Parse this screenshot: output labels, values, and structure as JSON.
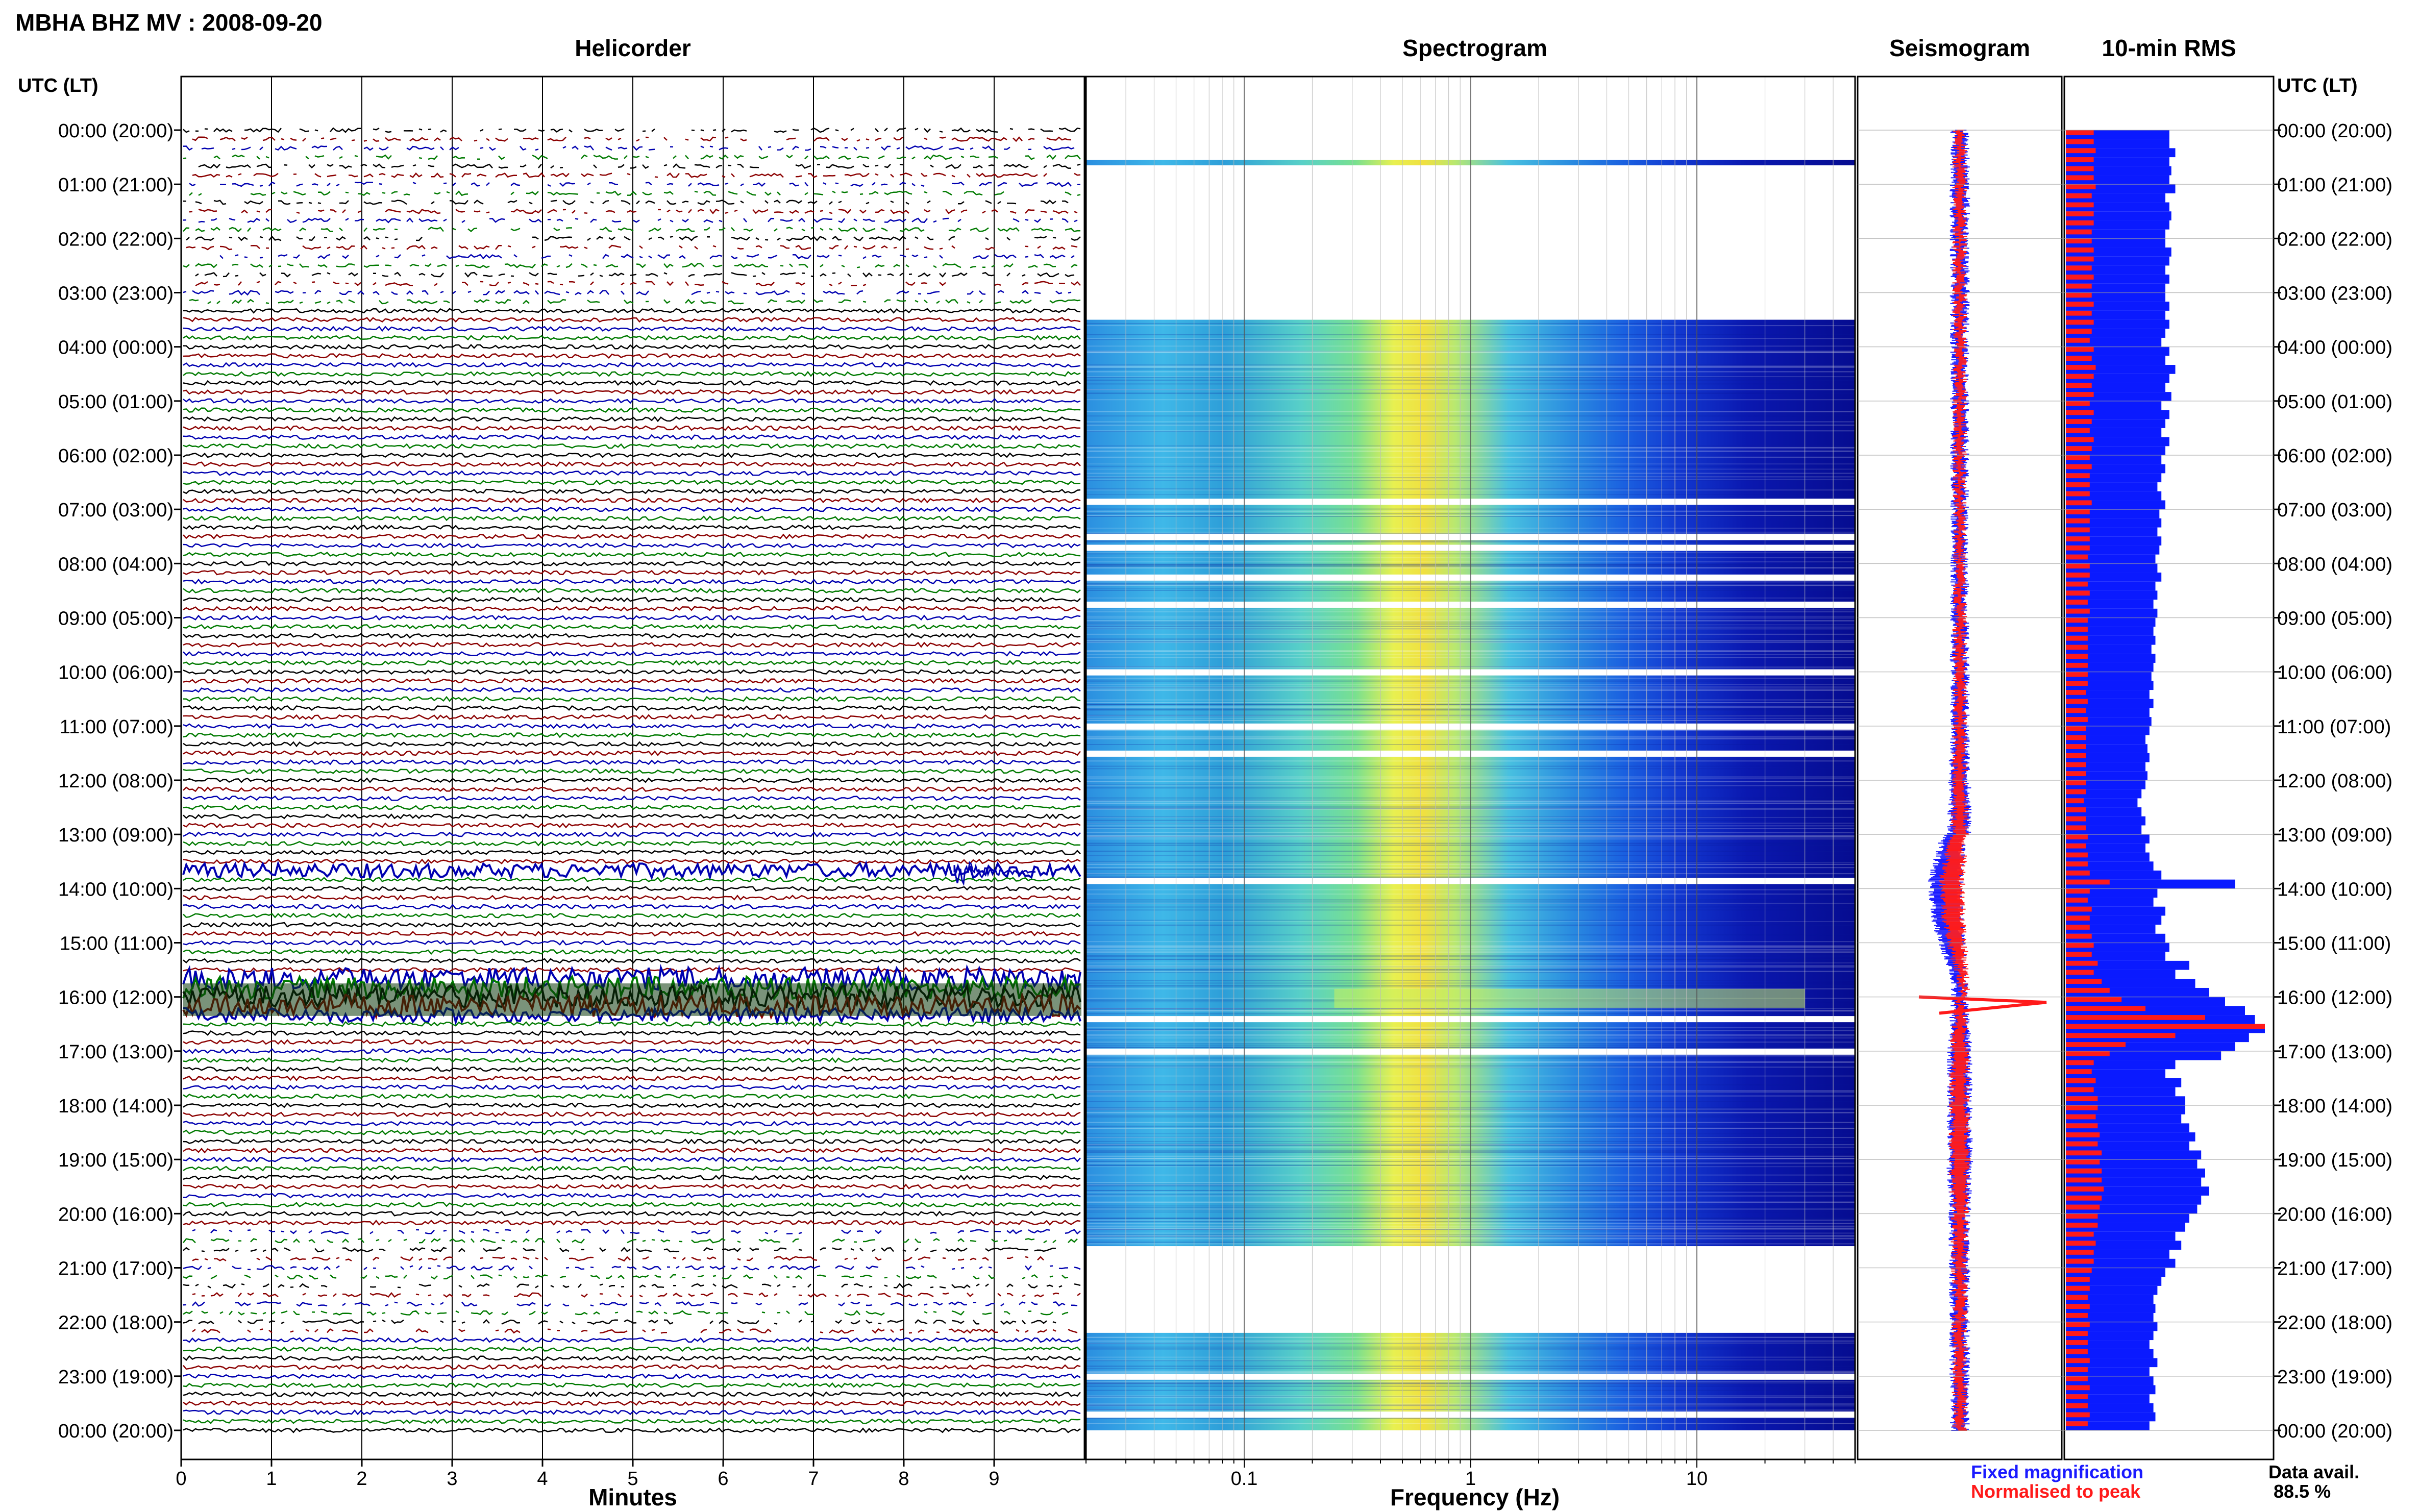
{
  "header": {
    "station_title": "MBHA BHZ MV : 2008-09-20",
    "utc_label_left": "UTC (LT)",
    "utc_label_right": "UTC (LT)"
  },
  "panels": {
    "helicorder": {
      "title": "Helicorder",
      "xlabel": "Minutes",
      "ticks": [
        "0",
        "1",
        "2",
        "3",
        "4",
        "5",
        "6",
        "7",
        "8",
        "9"
      ]
    },
    "spectrogram": {
      "title": "Spectrogram",
      "xlabel": "Frequency (Hz)",
      "ticks": [
        "0.1",
        "1",
        "10"
      ]
    },
    "seismogram": {
      "title": "Seismogram"
    },
    "rms": {
      "title": "10-min RMS"
    }
  },
  "time_labels": [
    "00:00 (20:00)",
    "01:00 (21:00)",
    "02:00 (22:00)",
    "03:00 (23:00)",
    "04:00 (00:00)",
    "05:00 (01:00)",
    "06:00 (02:00)",
    "07:00 (03:00)",
    "08:00 (04:00)",
    "09:00 (05:00)",
    "10:00 (06:00)",
    "11:00 (07:00)",
    "12:00 (08:00)",
    "13:00 (09:00)",
    "14:00 (10:00)",
    "15:00 (11:00)",
    "16:00 (12:00)",
    "17:00 (13:00)",
    "18:00 (14:00)",
    "19:00 (15:00)",
    "20:00 (16:00)",
    "21:00 (17:00)",
    "22:00 (18:00)",
    "23:00 (19:00)",
    "00:00 (20:00)"
  ],
  "legend": {
    "fixed": "Fixed magnification",
    "normalised": "Normalised to peak",
    "fixed_color": "#1a1aff",
    "normalised_color": "#ff1a1a"
  },
  "data_avail": {
    "label": "Data avail.",
    "value": "88.5 %"
  },
  "colors": {
    "trace_cycle": [
      "#000000",
      "#8b0000",
      "#0000b0",
      "#007a00"
    ],
    "rms_blue": "#0a1aff",
    "rms_red": "#ff1a1a"
  },
  "chart_data": [
    {
      "type": "line",
      "name": "helicorder",
      "title": "Helicorder",
      "xlabel": "Minutes",
      "x_range": [
        0,
        10
      ],
      "rows_per_hour": 6,
      "hours": 24,
      "gaps_hours": [
        [
          0,
          3.3
        ],
        [
          20.3,
          22.3
        ]
      ],
      "event_hours": [
        [
          13.6,
          13.8
        ],
        [
          15.6,
          16.4
        ]
      ],
      "grid": true
    },
    {
      "type": "heatmap",
      "name": "spectrogram",
      "title": "Spectrogram",
      "xlabel": "Frequency (Hz)",
      "x_scale": "log",
      "x_range": [
        0.02,
        50
      ],
      "data_hours": [
        [
          0.55,
          0.65
        ],
        [
          3.5,
          20.6
        ],
        [
          22.2,
          24
        ]
      ],
      "blank_hours": [
        6.85,
        7.5,
        7.7,
        8.25,
        8.75,
        10.0,
        11.0,
        11.5,
        13.85,
        16.4,
        17.0,
        23.0,
        23.7
      ],
      "peak_band_hz": [
        0.25,
        0.6
      ],
      "grid": true
    },
    {
      "type": "line",
      "name": "seismogram",
      "title": "Seismogram",
      "series": [
        {
          "name": "Fixed magnification",
          "hours": [
            0,
            1,
            2,
            3,
            4,
            5,
            6,
            7,
            8,
            9,
            10,
            11,
            12,
            13,
            13.8,
            14.5,
            15,
            15.5,
            16,
            16.5,
            17,
            18,
            19,
            20,
            21,
            22,
            23,
            24
          ],
          "relative_amplitude": [
            0.16,
            0.2,
            0.18,
            0.18,
            0.17,
            0.17,
            0.17,
            0.16,
            0.16,
            0.17,
            0.18,
            0.18,
            0.22,
            0.26,
            0.4,
            0.38,
            0.3,
            0.18,
            0.15,
            0.2,
            0.26,
            0.26,
            0.28,
            0.22,
            0.2,
            0.2,
            0.19,
            0.18
          ]
        },
        {
          "name": "Normalised to peak",
          "hours": [
            0,
            1,
            2,
            3,
            4,
            5,
            6,
            7,
            8,
            9,
            10,
            11,
            12,
            13,
            13.8,
            14.5,
            15,
            15.5,
            16,
            16.5,
            17,
            18,
            19,
            20,
            21,
            22,
            23,
            24
          ],
          "relative_amplitude": [
            0.1,
            0.12,
            0.11,
            0.11,
            0.11,
            0.11,
            0.11,
            0.1,
            0.1,
            0.11,
            0.12,
            0.12,
            0.14,
            0.18,
            0.28,
            0.26,
            0.2,
            0.12,
            0.06,
            0.14,
            0.2,
            0.2,
            0.22,
            0.16,
            0.14,
            0.13,
            0.13,
            0.12
          ]
        }
      ]
    },
    {
      "type": "bar",
      "name": "rms",
      "title": "10-min RMS",
      "orientation": "horizontal",
      "interval_minutes": 10,
      "series": [
        {
          "name": "Fixed magnification",
          "relative_values": [
            0.52,
            0.52,
            0.55,
            0.52,
            0.53,
            0.52,
            0.55,
            0.5,
            0.52,
            0.53,
            0.52,
            0.5,
            0.5,
            0.53,
            0.52,
            0.5,
            0.52,
            0.5,
            0.5,
            0.52,
            0.5,
            0.52,
            0.5,
            0.48,
            0.52,
            0.5,
            0.55,
            0.52,
            0.5,
            0.53,
            0.48,
            0.52,
            0.5,
            0.48,
            0.52,
            0.5,
            0.48,
            0.5,
            0.48,
            0.46,
            0.48,
            0.5,
            0.47,
            0.48,
            0.46,
            0.48,
            0.47,
            0.45,
            0.46,
            0.48,
            0.45,
            0.46,
            0.44,
            0.46,
            0.45,
            0.44,
            0.45,
            0.43,
            0.45,
            0.44,
            0.43,
            0.44,
            0.42,
            0.44,
            0.42,
            0.43,
            0.42,
            0.4,
            0.41,
            0.42,
            0.4,
            0.41,
            0.4,
            0.38,
            0.36,
            0.38,
            0.4,
            0.38,
            0.42,
            0.4,
            0.42,
            0.44,
            0.48,
            0.85,
            0.46,
            0.44,
            0.5,
            0.48,
            0.45,
            0.5,
            0.52,
            0.5,
            0.62,
            0.55,
            0.65,
            0.72,
            0.8,
            0.9,
            0.95,
            1.0,
            0.92,
            0.85,
            0.78,
            0.55,
            0.5,
            0.58,
            0.55,
            0.6,
            0.6,
            0.58,
            0.62,
            0.65,
            0.62,
            0.68,
            0.66,
            0.7,
            0.68,
            0.72,
            0.68,
            0.66,
            0.62,
            0.6,
            0.55,
            0.58,
            0.52,
            0.55,
            0.5,
            0.48,
            0.46,
            0.44,
            0.45,
            0.44,
            0.46,
            0.44,
            0.42,
            0.44,
            0.46,
            0.42,
            0.44,
            0.45,
            0.42,
            0.44,
            0.45,
            0.42
          ]
        },
        {
          "name": "Normalised to peak",
          "relative_values": [
            0.14,
            0.14,
            0.15,
            0.14,
            0.14,
            0.14,
            0.15,
            0.13,
            0.14,
            0.14,
            0.14,
            0.13,
            0.13,
            0.14,
            0.14,
            0.13,
            0.14,
            0.13,
            0.13,
            0.14,
            0.13,
            0.14,
            0.13,
            0.12,
            0.14,
            0.13,
            0.15,
            0.14,
            0.13,
            0.14,
            0.12,
            0.14,
            0.13,
            0.12,
            0.14,
            0.13,
            0.12,
            0.13,
            0.12,
            0.12,
            0.12,
            0.13,
            0.12,
            0.12,
            0.12,
            0.12,
            0.12,
            0.11,
            0.12,
            0.12,
            0.11,
            0.12,
            0.11,
            0.12,
            0.11,
            0.11,
            0.11,
            0.11,
            0.11,
            0.11,
            0.11,
            0.11,
            0.1,
            0.11,
            0.1,
            0.11,
            0.1,
            0.1,
            0.1,
            0.1,
            0.1,
            0.1,
            0.1,
            0.1,
            0.09,
            0.1,
            0.1,
            0.1,
            0.11,
            0.1,
            0.11,
            0.11,
            0.12,
            0.22,
            0.12,
            0.11,
            0.13,
            0.12,
            0.12,
            0.13,
            0.14,
            0.13,
            0.16,
            0.14,
            0.18,
            0.22,
            0.28,
            0.4,
            0.7,
            1.0,
            0.55,
            0.3,
            0.22,
            0.14,
            0.13,
            0.15,
            0.14,
            0.16,
            0.16,
            0.15,
            0.16,
            0.17,
            0.16,
            0.18,
            0.17,
            0.18,
            0.18,
            0.19,
            0.18,
            0.17,
            0.16,
            0.16,
            0.14,
            0.15,
            0.14,
            0.14,
            0.13,
            0.12,
            0.12,
            0.11,
            0.12,
            0.11,
            0.12,
            0.11,
            0.11,
            0.11,
            0.12,
            0.11,
            0.11,
            0.12,
            0.11,
            0.11,
            0.12,
            0.11
          ]
        }
      ]
    }
  ]
}
